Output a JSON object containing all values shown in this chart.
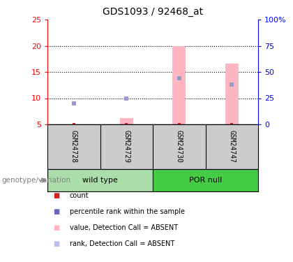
{
  "title": "GDS1093 / 92468_at",
  "samples": [
    "GSM24728",
    "GSM24729",
    "GSM24730",
    "GSM24747"
  ],
  "ylim_left": [
    5,
    25
  ],
  "ylim_right": [
    0,
    100
  ],
  "yticks_left": [
    5,
    10,
    15,
    20,
    25
  ],
  "yticks_right": [
    0,
    25,
    50,
    75,
    100
  ],
  "ytick_labels_left": [
    "5",
    "10",
    "15",
    "20",
    "25"
  ],
  "ytick_labels_right": [
    "0",
    "25",
    "50",
    "75",
    "100%"
  ],
  "dotted_lines": [
    10,
    15,
    20
  ],
  "bar_values": [
    null,
    6.2,
    20.0,
    16.6
  ],
  "rank_values": [
    9.0,
    10.0,
    13.8,
    12.6
  ],
  "count_values": [
    5.05,
    5.05,
    5.05,
    5.05
  ],
  "bar_color": "#ffb6c1",
  "rank_color": "#9999cc",
  "count_color": "#cc2222",
  "group_label": "genotype/variation",
  "wild_type_color": "#aaddaa",
  "por_null_color": "#44cc44",
  "sample_area_color": "#cccccc",
  "legend_items": [
    {
      "label": "count",
      "color": "#cc2222"
    },
    {
      "label": "percentile rank within the sample",
      "color": "#6666bb"
    },
    {
      "label": "value, Detection Call = ABSENT",
      "color": "#ffb6c1"
    },
    {
      "label": "rank, Detection Call = ABSENT",
      "color": "#bbbbee"
    }
  ]
}
